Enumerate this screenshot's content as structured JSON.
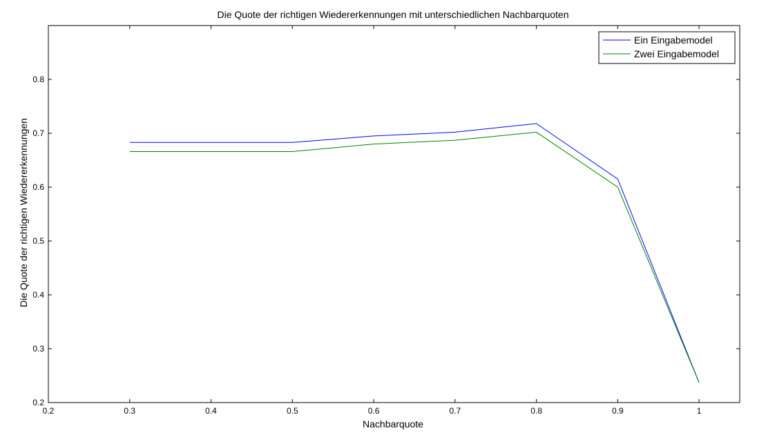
{
  "chart_data": {
    "type": "line",
    "title": "Die Quote der richtigen Wiedererkennungen mit unterschiedlichen Nachbarquoten",
    "xlabel": "Nachbarquote",
    "ylabel": "Die Quote der richtigen Wiedererkennungen",
    "xlim": [
      0.2,
      1.05
    ],
    "ylim": [
      0.2,
      0.9
    ],
    "xticks": [
      0.2,
      0.3,
      0.4,
      0.5,
      0.6,
      0.7,
      0.8,
      0.9,
      1
    ],
    "xtick_labels": [
      "0.2",
      "0.3",
      "0.4",
      "0.5",
      "0.6",
      "0.7",
      "0.8",
      "0.9",
      "1"
    ],
    "yticks": [
      0.2,
      0.3,
      0.4,
      0.5,
      0.6,
      0.7,
      0.8
    ],
    "ytick_labels": [
      "0.2",
      "0.3",
      "0.4",
      "0.5",
      "0.6",
      "0.7",
      "0.8"
    ],
    "grid": false,
    "legend_position": "top-right",
    "x": [
      0.3,
      0.5,
      0.6,
      0.7,
      0.8,
      0.9,
      1.0
    ],
    "series": [
      {
        "name": "Ein Eingabemodel",
        "color": "#0000ff",
        "values": [
          0.683,
          0.683,
          0.695,
          0.702,
          0.718,
          0.615,
          0.237
        ]
      },
      {
        "name": "Zwei Eingabemodel",
        "color": "#008000",
        "values": [
          0.666,
          0.666,
          0.68,
          0.687,
          0.702,
          0.6,
          0.237
        ]
      }
    ]
  }
}
